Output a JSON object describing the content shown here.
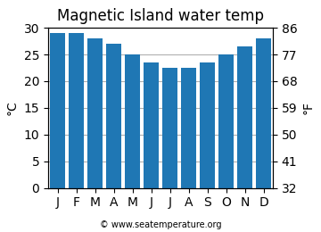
{
  "chart_data": {
    "type": "bar",
    "title": "Magnetic Island water temp",
    "categories": [
      "J",
      "F",
      "M",
      "A",
      "M",
      "J",
      "J",
      "A",
      "S",
      "O",
      "N",
      "D"
    ],
    "values": [
      29.0,
      29.0,
      28.0,
      27.0,
      25.0,
      23.5,
      22.5,
      22.5,
      23.5,
      25.0,
      26.5,
      28.0
    ],
    "ylabel": "°C",
    "y2label": "°F",
    "ylim": [
      0,
      30
    ],
    "yticks": [
      0,
      5,
      10,
      15,
      20,
      25,
      30
    ],
    "y2lim": [
      32,
      86
    ],
    "y2ticks": [
      32,
      41,
      50,
      59,
      68,
      77,
      86
    ],
    "grid": true,
    "annotations": [
      "© www.seatemperature.org"
    ]
  }
}
